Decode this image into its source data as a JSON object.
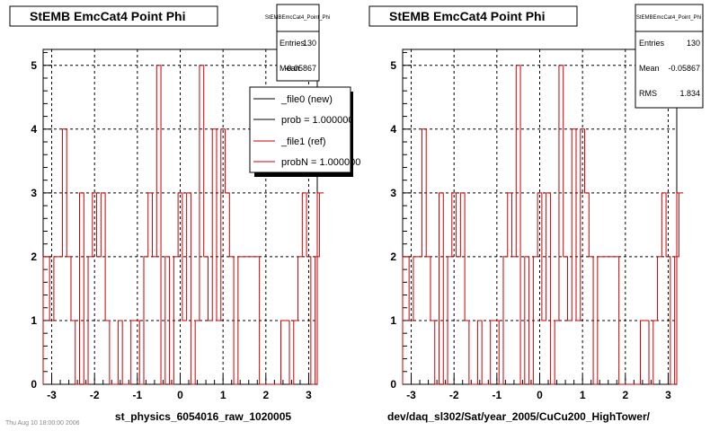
{
  "footer_text": "Thu Aug 10 18:00:00 2006",
  "colors": {
    "new": "#000000",
    "ref": "#cc0000",
    "grid": "#000000"
  },
  "chart_data": [
    {
      "type": "histogram",
      "title": "StEMB EmcCat4 Point Phi",
      "xlabel": "st_physics_6054016_raw_1020005",
      "xlim": [
        -3.2,
        3.2
      ],
      "ylim": [
        0,
        5.25
      ],
      "grid": true,
      "xticks": [
        -3,
        -2,
        -1,
        0,
        1,
        2,
        3
      ],
      "yticks": [
        0,
        1,
        2,
        3,
        4,
        5
      ],
      "stats": {
        "name": "StEMBEmcCat4_Point_Phi",
        "entries_label": "Entries",
        "entries": "130",
        "mean_label": "Mean",
        "mean": "-0.05867"
      },
      "legend": {
        "placement": "top-right",
        "entries": [
          {
            "label": "_file0 (new)",
            "color": "#000000"
          },
          {
            "label": "prob = 1.000000",
            "color": "#000000"
          },
          {
            "label": "_file1 (ref)",
            "color": "#cc0000"
          },
          {
            "label": "probN = 1.000000",
            "color": "#cc0000"
          }
        ]
      },
      "bin_width": 0.1,
      "series": [
        {
          "x_start": -3.15,
          "values": [
            2,
            1,
            2,
            2,
            4,
            2,
            1,
            0,
            3,
            0,
            2,
            3,
            2,
            3,
            1,
            0,
            0,
            1,
            0,
            0,
            1,
            1,
            0,
            2,
            3,
            2,
            5,
            0,
            2,
            0,
            2,
            3,
            1,
            3,
            0,
            1,
            5,
            2,
            1,
            4,
            1,
            4,
            3,
            2,
            0,
            2,
            2,
            2,
            2,
            2,
            0,
            0,
            0,
            0,
            0,
            1,
            1,
            0,
            1,
            2,
            3,
            2,
            0,
            2,
            3
          ]
        }
      ]
    },
    {
      "type": "histogram",
      "title": "StEMB EmcCat4 Point Phi",
      "xlabel": "dev/daq_sl302/Sat/year_2005/CuCu200_HighTower/",
      "xlim": [
        -3.2,
        3.2
      ],
      "ylim": [
        0,
        5.25
      ],
      "grid": true,
      "xticks": [
        -3,
        -2,
        -1,
        0,
        1,
        2,
        3
      ],
      "yticks": [
        0,
        1,
        2,
        3,
        4,
        5
      ],
      "stats": {
        "name": "StEMBEmcCat4_Point_Phi",
        "entries_label": "Entries",
        "entries": "130",
        "mean_label": "Mean",
        "mean": "-0.05867",
        "rms_label": "RMS",
        "rms": "1.834"
      },
      "bin_width": 0.1,
      "series": [
        {
          "x_start": -3.15,
          "values": [
            2,
            1,
            2,
            2,
            4,
            2,
            1,
            0,
            3,
            0,
            2,
            3,
            2,
            3,
            1,
            0,
            0,
            1,
            0,
            0,
            1,
            1,
            0,
            2,
            3,
            2,
            5,
            0,
            2,
            0,
            2,
            3,
            1,
            3,
            0,
            1,
            5,
            2,
            1,
            4,
            1,
            4,
            3,
            2,
            0,
            2,
            2,
            2,
            2,
            2,
            0,
            0,
            0,
            0,
            0,
            1,
            1,
            0,
            1,
            2,
            3,
            2,
            0,
            2,
            3
          ]
        }
      ]
    }
  ]
}
